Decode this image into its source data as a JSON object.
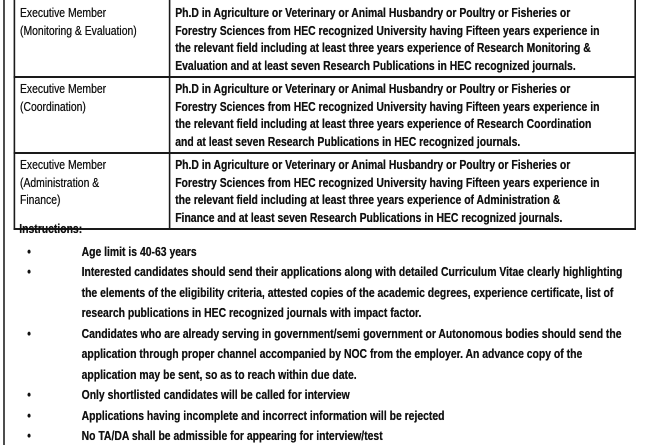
{
  "positions": [
    {
      "title_lines": [
        "Executive Member",
        "(Monitoring & Evaluation)"
      ],
      "requirement_lines": [
        "Ph.D in Agriculture or Veterinary or Animal Husbandry or Poultry or Fisheries or",
        "Forestry Sciences from HEC recognized University having Fifteen years experience in",
        "the relevant field including at least three years experience of Research Monitoring &",
        "Evaluation and at least seven Research Publications in HEC recognized journals."
      ]
    },
    {
      "title_lines": [
        "Executive Member",
        "(Coordination)"
      ],
      "requirement_lines": [
        "Ph.D in Agriculture or Veterinary or Animal Husbandry or Poultry or Fisheries or",
        "Forestry Sciences from HEC recognized University having Fifteen years experience in",
        "the relevant field including at least three years experience of Research Coordination",
        "and at least seven Research Publications in HEC recognized journals."
      ]
    },
    {
      "title_lines": [
        "Executive Member",
        "(Administration &",
        "Finance)"
      ],
      "requirement_lines": [
        "Ph.D in Agriculture or Veterinary or Animal Husbandry or Poultry or Fisheries or",
        "Forestry Sciences from HEC recognized University having Fifteen years experience in",
        "the relevant field including at least three years experience of Administration &",
        "Finance and at least seven Research Publications in HEC recognized journals."
      ]
    }
  ],
  "instructions": {
    "title": "Instructions:",
    "bullet": "•",
    "items": [
      [
        "Age limit is 40-63 years"
      ],
      [
        "Interested candidates should send their applications along with detailed Curriculum Vitae clearly highlighting",
        "the elements of the eligibility criteria, attested copies of the academic degrees, experience certificate, list of",
        "research publications in HEC recognized journals with impact factor."
      ],
      [
        "Candidates who are already serving in government/semi government or Autonomous bodies should send  the",
        "application  through proper channel accompanied by NOC from the employer. An advance copy of the",
        "application may be sent, so as to reach within due date."
      ],
      [
        "Only shortlisted candidates will be called for interview"
      ],
      [
        "Applications having incomplete and incorrect information will be rejected"
      ],
      [
        "No TA/DA shall be admissible for appearing for interview/test"
      ]
    ]
  }
}
